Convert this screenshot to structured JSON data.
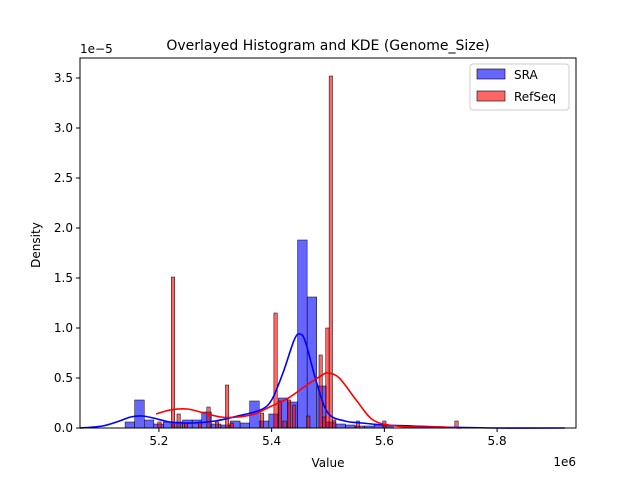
{
  "chart_data": {
    "type": "histogram",
    "title": "Overlayed Histogram and KDE (Genome_Size)",
    "xlabel": "Value",
    "ylabel": "Density",
    "x_scale_label": "1e6",
    "y_scale_label": "1e−5",
    "xlim": [
      5060000.0,
      5940000.0
    ],
    "ylim": [
      0,
      3.7e-05
    ],
    "x_ticks": [
      5200000.0,
      5400000.0,
      5600000.0,
      5800000.0
    ],
    "x_tick_labels": [
      "5.2",
      "5.4",
      "5.6",
      "5.8"
    ],
    "y_ticks": [
      0,
      5e-06,
      1e-05,
      1.5e-05,
      2e-05,
      2.5e-05,
      3e-05,
      3.5e-05
    ],
    "y_tick_labels": [
      "0.0",
      "0.5",
      "1.0",
      "1.5",
      "2.0",
      "2.5",
      "3.0",
      "3.5"
    ],
    "legend_position": "top-right",
    "series": [
      {
        "name": "SRA",
        "color": "#0000ff",
        "bin_width": 17000,
        "bins": [
          {
            "x0": 5140000.0,
            "density": 6e-07
          },
          {
            "x0": 5157000.0,
            "density": 2.8e-06
          },
          {
            "x0": 5174000.0,
            "density": 8e-07
          },
          {
            "x0": 5191000.0,
            "density": 4e-07
          },
          {
            "x0": 5208000.0,
            "density": 6e-07
          },
          {
            "x0": 5225000.0,
            "density": 6e-07
          },
          {
            "x0": 5242000.0,
            "density": 8e-07
          },
          {
            "x0": 5259000.0,
            "density": 8e-07
          },
          {
            "x0": 5276000.0,
            "density": 1.6e-06
          },
          {
            "x0": 5293000.0,
            "density": 4e-07
          },
          {
            "x0": 5310000.0,
            "density": 3e-07
          },
          {
            "x0": 5327000.0,
            "density": 7e-07
          },
          {
            "x0": 5344000.0,
            "density": 5e-07
          },
          {
            "x0": 5361000.0,
            "density": 2.7e-06
          },
          {
            "x0": 5378000.0,
            "density": 7e-07
          },
          {
            "x0": 5395000.0,
            "density": 1.4e-06
          },
          {
            "x0": 5412000.0,
            "density": 3e-06
          },
          {
            "x0": 5429000.0,
            "density": 2.6e-06
          },
          {
            "x0": 5446000.0,
            "density": 1.88e-05
          },
          {
            "x0": 5463000.0,
            "density": 1.31e-05
          },
          {
            "x0": 5480000.0,
            "density": 4.2e-06
          },
          {
            "x0": 5497000.0,
            "density": 6e-07
          },
          {
            "x0": 5514000.0,
            "density": 4e-07
          },
          {
            "x0": 5531000.0,
            "density": 3e-07
          },
          {
            "x0": 5548000.0,
            "density": 2e-07
          },
          {
            "x0": 5565000.0,
            "density": 2e-07
          },
          {
            "x0": 5582000.0,
            "density": 3e-07
          },
          {
            "x0": 5599000.0,
            "density": 2e-07
          }
        ],
        "kde": {
          "x": [
            5060000.0,
            5100000.0,
            5130000.0,
            5150000.0,
            5170000.0,
            5190000.0,
            5220000.0,
            5260000.0,
            5300000.0,
            5340000.0,
            5380000.0,
            5400000.0,
            5420000.0,
            5440000.0,
            5450000.0,
            5460000.0,
            5480000.0,
            5500000.0,
            5530000.0,
            5560000.0,
            5600000.0,
            5650000.0,
            5700000.0,
            5800000.0,
            5920000.0
          ],
          "y": [
            0.0,
            2e-07,
            7e-07,
            1.1e-06,
            1.2e-06,
            1e-06,
            6e-07,
            5e-07,
            7e-07,
            1.2e-06,
            1.8e-06,
            2.8e-06,
            5.5e-06,
            8.8e-06,
            9.4e-06,
            8.6e-06,
            4.5e-06,
            1.5e-06,
            7e-07,
            5e-07,
            3e-07,
            2e-07,
            1e-07,
            0.0,
            0.0
          ]
        }
      },
      {
        "name": "RefSeq",
        "color": "#ff0000",
        "bin_width": 6000,
        "bins": [
          {
            "x0": 5198000.0,
            "density": 6e-07
          },
          {
            "x0": 5222000.0,
            "density": 1.51e-05
          },
          {
            "x0": 5232000.0,
            "density": 1.4e-06
          },
          {
            "x0": 5245000.0,
            "density": 5e-07
          },
          {
            "x0": 5270000.0,
            "density": 6e-07
          },
          {
            "x0": 5285000.0,
            "density": 2.1e-06
          },
          {
            "x0": 5300000.0,
            "density": 6e-07
          },
          {
            "x0": 5318000.0,
            "density": 4.3e-06
          },
          {
            "x0": 5326000.0,
            "density": 5e-07
          },
          {
            "x0": 5380000.0,
            "density": 1.5e-06
          },
          {
            "x0": 5404000.0,
            "density": 1.15e-05
          },
          {
            "x0": 5412000.0,
            "density": 2.7e-06
          },
          {
            "x0": 5420000.0,
            "density": 7e-07
          },
          {
            "x0": 5428000.0,
            "density": 2.8e-06
          },
          {
            "x0": 5437000.0,
            "density": 2.3e-06
          },
          {
            "x0": 5462000.0,
            "density": 1.2e-06
          },
          {
            "x0": 5484000.0,
            "density": 7.3e-06
          },
          {
            "x0": 5490000.0,
            "density": 1.1e-06
          },
          {
            "x0": 5496000.0,
            "density": 1e-05
          },
          {
            "x0": 5502000.0,
            "density": 3.52e-05
          },
          {
            "x0": 5508000.0,
            "density": 8e-07
          },
          {
            "x0": 5550000.0,
            "density": 7e-07
          },
          {
            "x0": 5597000.0,
            "density": 7e-07
          },
          {
            "x0": 5725000.0,
            "density": 7e-07
          }
        ],
        "kde": {
          "x": [
            5195000.0,
            5220000.0,
            5250000.0,
            5280000.0,
            5310000.0,
            5340000.0,
            5370000.0,
            5400000.0,
            5430000.0,
            5460000.0,
            5490000.0,
            5500000.0,
            5520000.0,
            5550000.0,
            5580000.0,
            5620000.0,
            5660000.0,
            5700000.0,
            5735000.0
          ],
          "y": [
            1.4e-06,
            1.8e-06,
            1.9e-06,
            1.5e-06,
            1.1e-06,
            1.1e-06,
            1.4e-06,
            2.2e-06,
            3e-06,
            4.2e-06,
            5.3e-06,
            5.5e-06,
            5e-06,
            2.8e-06,
            8e-07,
            2e-07,
            1e-07,
            1e-07,
            0.0
          ]
        }
      }
    ]
  }
}
